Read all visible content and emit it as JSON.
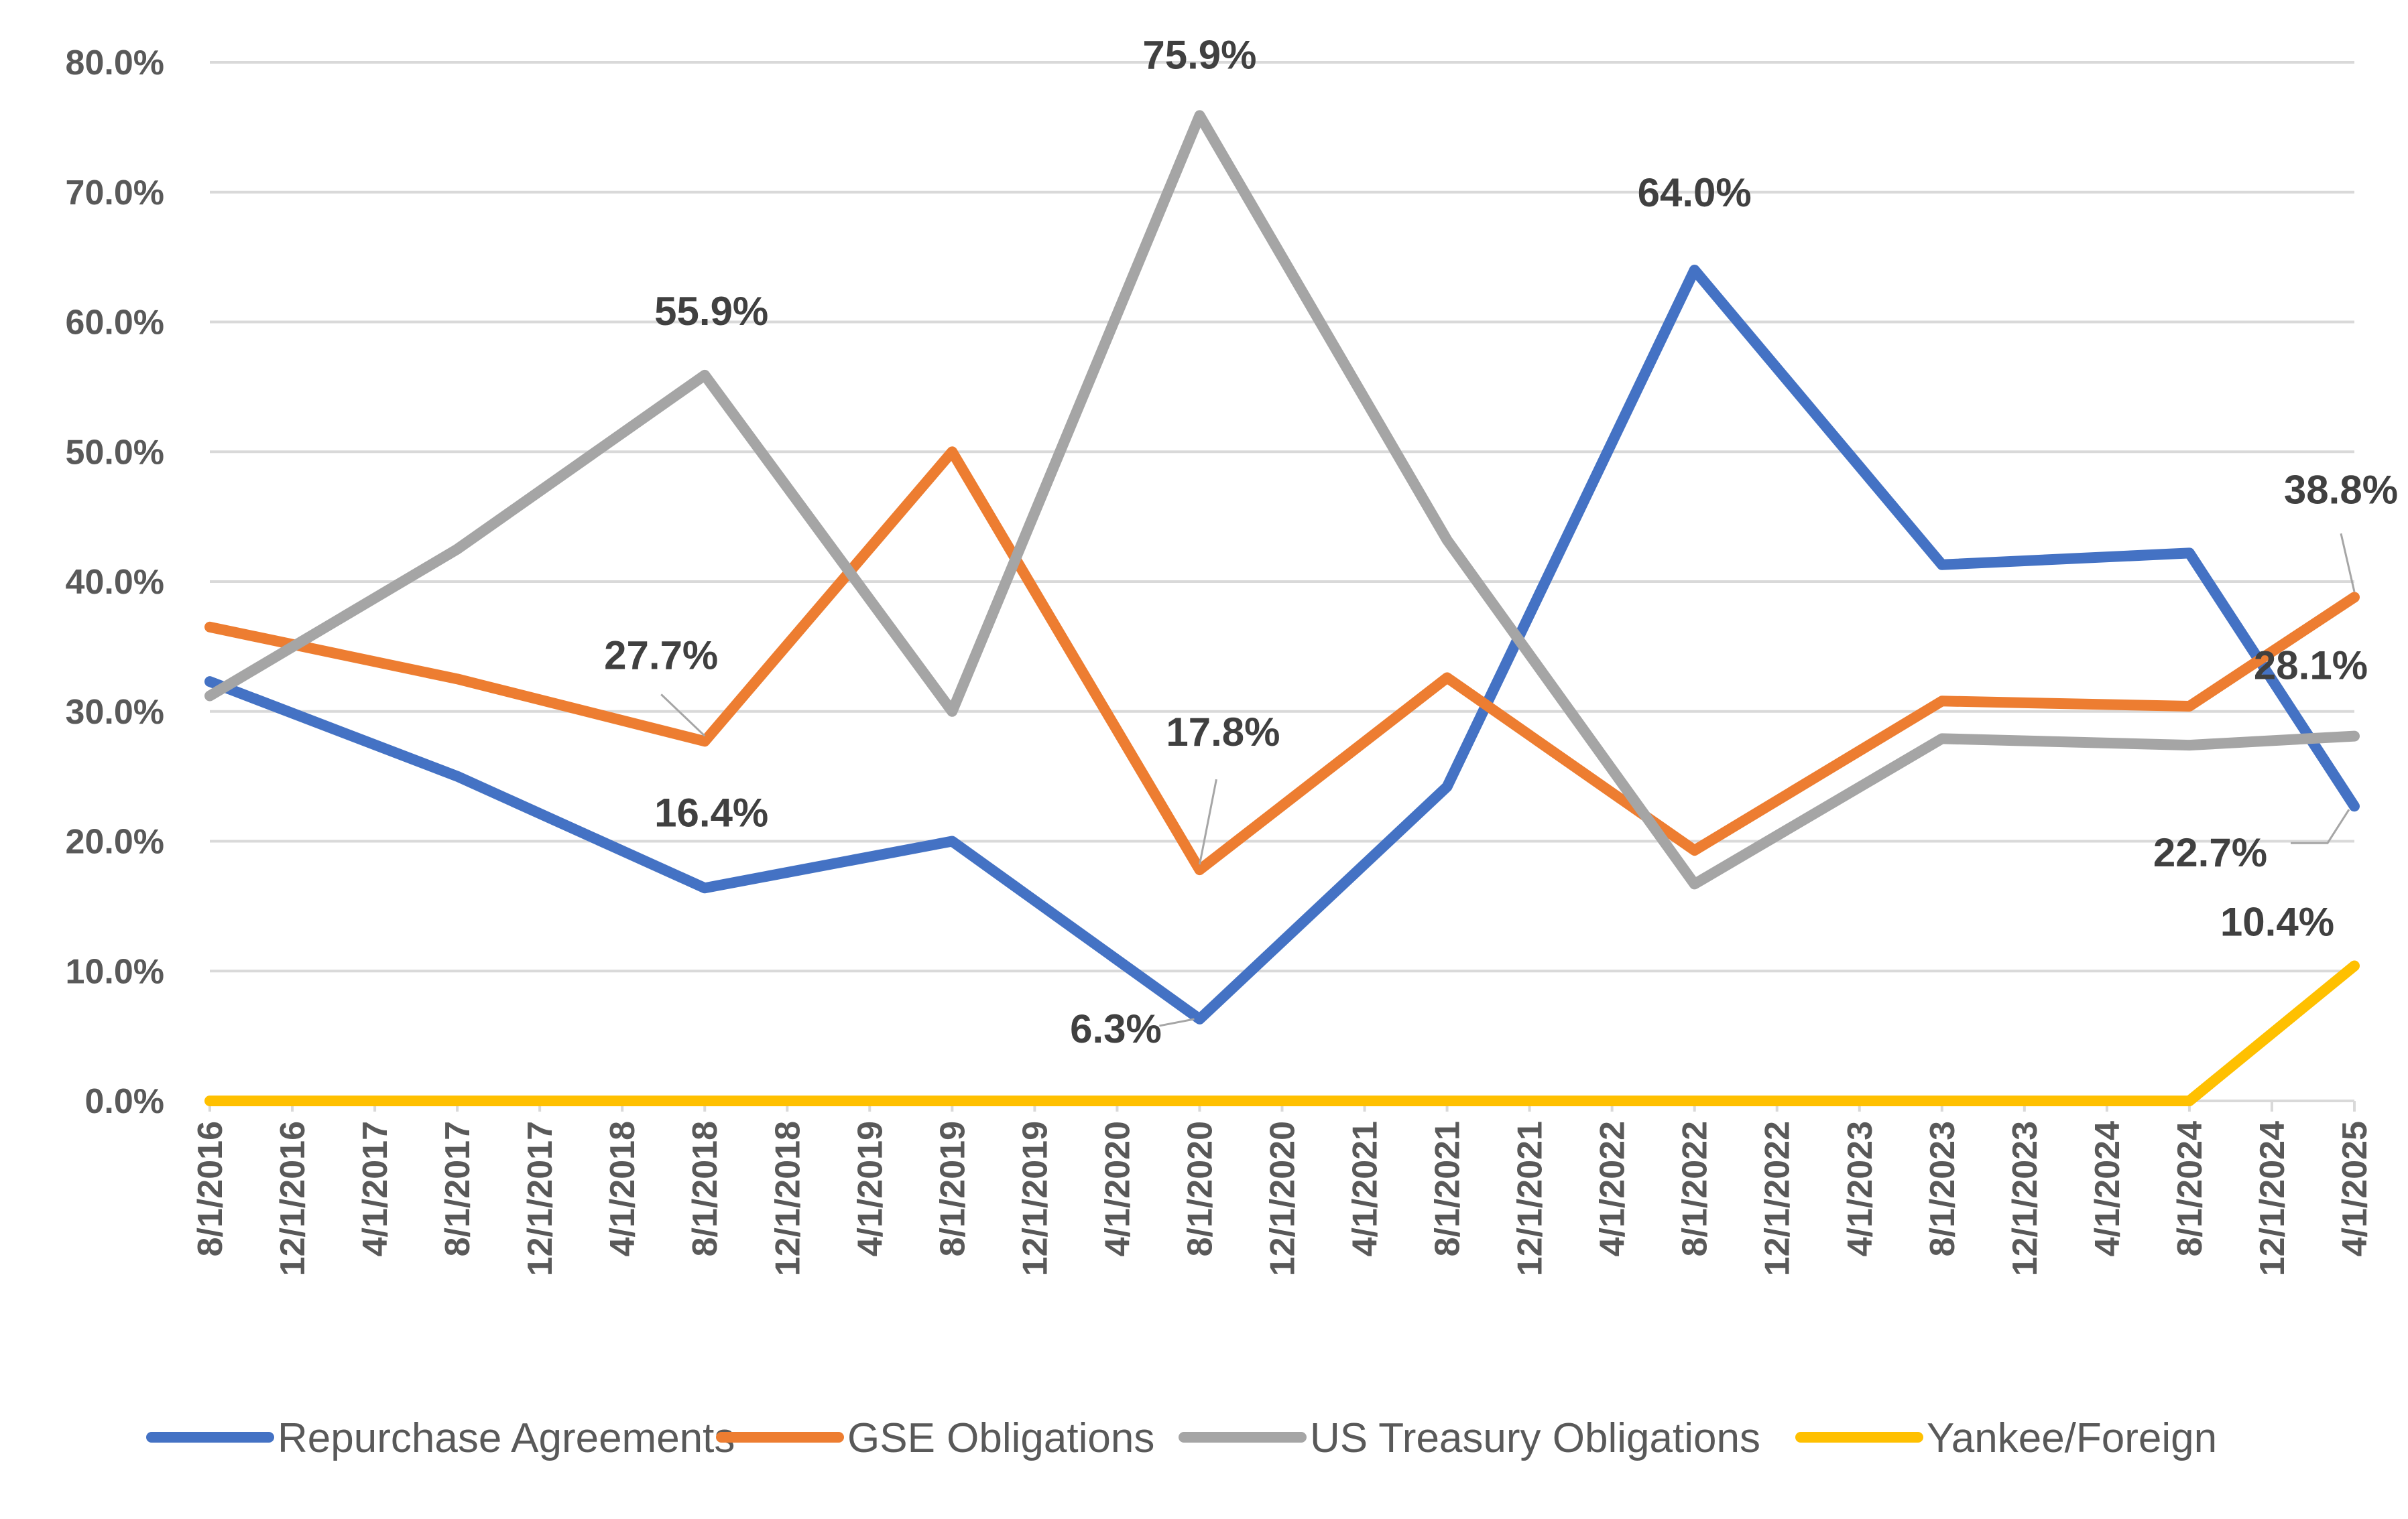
{
  "chart_data": {
    "type": "line",
    "title": "",
    "xlabel": "",
    "ylabel": "",
    "x": [
      "8/1/2016",
      "12/1/2016",
      "4/1/2017",
      "8/1/2017",
      "12/1/2017",
      "4/1/2018",
      "8/1/2018",
      "12/1/2018",
      "4/1/2019",
      "8/1/2019",
      "12/1/2019",
      "4/1/2020",
      "8/1/2020",
      "12/1/2020",
      "4/1/2021",
      "8/1/2021",
      "12/1/2021",
      "4/1/2022",
      "8/1/2022",
      "12/1/2022",
      "4/1/2023",
      "8/1/2023",
      "12/1/2023",
      "4/1/2024",
      "8/1/2024",
      "12/1/2024",
      "4/1/2025"
    ],
    "ylim": [
      0,
      80
    ],
    "yticks": [
      "0.0%",
      "10.0%",
      "20.0%",
      "30.0%",
      "40.0%",
      "50.0%",
      "60.0%",
      "70.0%",
      "80.0%"
    ],
    "grid": true,
    "legend_position": "bottom",
    "series": [
      {
        "name": "Repurchase Agreements",
        "color": "#4472c4",
        "points": [
          [
            "8/1/2016",
            32.3
          ],
          [
            "8/1/2017",
            25.0
          ],
          [
            "8/1/2018",
            16.4
          ],
          [
            "8/1/2019",
            20.0
          ],
          [
            "8/1/2020",
            6.3
          ],
          [
            "8/1/2021",
            24.2
          ],
          [
            "8/1/2022",
            64.0
          ],
          [
            "8/1/2023",
            41.3
          ],
          [
            "8/1/2024",
            42.2
          ],
          [
            "4/1/2025",
            22.7
          ]
        ]
      },
      {
        "name": "GSE Obligations",
        "color": "#ed7d31",
        "points": [
          [
            "8/1/2016",
            36.5
          ],
          [
            "8/1/2017",
            32.5
          ],
          [
            "8/1/2018",
            27.7
          ],
          [
            "8/1/2019",
            50.0
          ],
          [
            "8/1/2020",
            17.8
          ],
          [
            "8/1/2021",
            32.6
          ],
          [
            "8/1/2022",
            19.3
          ],
          [
            "8/1/2023",
            30.8
          ],
          [
            "8/1/2024",
            30.4
          ],
          [
            "4/1/2025",
            38.8
          ]
        ]
      },
      {
        "name": "US Treasury Obligations",
        "color": "#a5a5a5",
        "points": [
          [
            "8/1/2016",
            31.2
          ],
          [
            "8/1/2017",
            42.5
          ],
          [
            "8/1/2018",
            55.9
          ],
          [
            "8/1/2019",
            30.0
          ],
          [
            "8/1/2020",
            75.9
          ],
          [
            "8/1/2021",
            43.2
          ],
          [
            "8/1/2022",
            16.7
          ],
          [
            "8/1/2023",
            27.9
          ],
          [
            "8/1/2024",
            27.4
          ],
          [
            "4/1/2025",
            28.1
          ]
        ]
      },
      {
        "name": "Yankee/Foreign",
        "color": "#ffc000",
        "points": [
          [
            "8/1/2016",
            0.0
          ],
          [
            "8/1/2017",
            0.0
          ],
          [
            "8/1/2018",
            0.0
          ],
          [
            "8/1/2019",
            0.0
          ],
          [
            "8/1/2020",
            0.0
          ],
          [
            "8/1/2021",
            0.0
          ],
          [
            "8/1/2022",
            0.0
          ],
          [
            "8/1/2023",
            0.0
          ],
          [
            "8/1/2024",
            0.0
          ],
          [
            "4/1/2025",
            10.4
          ]
        ]
      }
    ],
    "annotations": [
      {
        "series": 2,
        "x": "8/1/2018",
        "value": 55.9,
        "text": "55.9%"
      },
      {
        "series": 2,
        "x": "8/1/2020",
        "value": 75.9,
        "text": "75.9%"
      },
      {
        "series": 0,
        "x": "8/1/2022",
        "value": 64.0,
        "text": "64.0%"
      },
      {
        "series": 1,
        "x": "8/1/2018",
        "value": 27.7,
        "text": "27.7%"
      },
      {
        "series": 0,
        "x": "8/1/2018",
        "value": 16.4,
        "text": "16.4%"
      },
      {
        "series": 1,
        "x": "8/1/2020",
        "value": 17.8,
        "text": "17.8%"
      },
      {
        "series": 0,
        "x": "8/1/2020",
        "value": 6.3,
        "text": "6.3%"
      },
      {
        "series": 1,
        "x": "4/1/2025",
        "value": 38.8,
        "text": "38.8%"
      },
      {
        "series": 2,
        "x": "4/1/2025",
        "value": 28.1,
        "text": "28.1%"
      },
      {
        "series": 0,
        "x": "4/1/2025",
        "value": 22.7,
        "text": "22.7%"
      },
      {
        "series": 3,
        "x": "4/1/2025",
        "value": 10.4,
        "text": "10.4%"
      }
    ]
  }
}
